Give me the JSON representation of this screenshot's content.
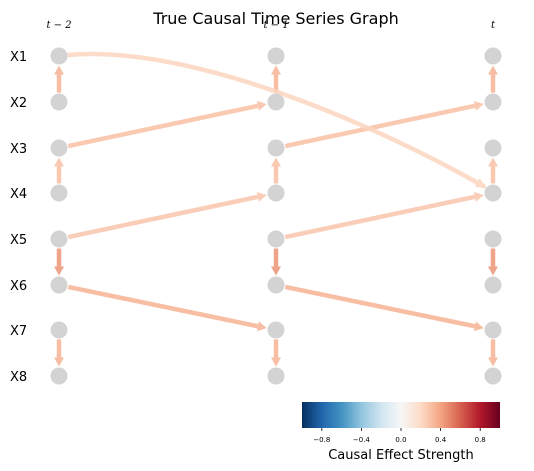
{
  "title": "True Causal Time Series Graph",
  "time_labels": [
    "t − 2",
    "t − 1",
    "t"
  ],
  "variables": [
    "X1",
    "X2",
    "X3",
    "X4",
    "X5",
    "X6",
    "X7",
    "X8"
  ],
  "edges": [
    {
      "from": [
        "t − 2",
        "X2"
      ],
      "to": [
        "t − 2",
        "X1"
      ],
      "strength": 0.35
    },
    {
      "from": [
        "t − 1",
        "X2"
      ],
      "to": [
        "t − 1",
        "X1"
      ],
      "strength": 0.35
    },
    {
      "from": [
        "t",
        "X2"
      ],
      "to": [
        "t",
        "X1"
      ],
      "strength": 0.35
    },
    {
      "from": [
        "t − 2",
        "X4"
      ],
      "to": [
        "t − 2",
        "X3"
      ],
      "strength": 0.3
    },
    {
      "from": [
        "t − 1",
        "X4"
      ],
      "to": [
        "t − 1",
        "X3"
      ],
      "strength": 0.3
    },
    {
      "from": [
        "t",
        "X4"
      ],
      "to": [
        "t",
        "X3"
      ],
      "strength": 0.3
    },
    {
      "from": [
        "t − 2",
        "X5"
      ],
      "to": [
        "t − 2",
        "X6"
      ],
      "strength": 0.45
    },
    {
      "from": [
        "t − 1",
        "X5"
      ],
      "to": [
        "t − 1",
        "X6"
      ],
      "strength": 0.45
    },
    {
      "from": [
        "t",
        "X5"
      ],
      "to": [
        "t",
        "X6"
      ],
      "strength": 0.45
    },
    {
      "from": [
        "t − 2",
        "X7"
      ],
      "to": [
        "t − 2",
        "X8"
      ],
      "strength": 0.35
    },
    {
      "from": [
        "t − 1",
        "X7"
      ],
      "to": [
        "t − 1",
        "X8"
      ],
      "strength": 0.35
    },
    {
      "from": [
        "t",
        "X7"
      ],
      "to": [
        "t",
        "X8"
      ],
      "strength": 0.35
    },
    {
      "from": [
        "t − 2",
        "X3"
      ],
      "to": [
        "t − 1",
        "X2"
      ],
      "strength": 0.3
    },
    {
      "from": [
        "t − 1",
        "X3"
      ],
      "to": [
        "t",
        "X2"
      ],
      "strength": 0.3
    },
    {
      "from": [
        "t − 2",
        "X5"
      ],
      "to": [
        "t − 1",
        "X4"
      ],
      "strength": 0.28
    },
    {
      "from": [
        "t − 1",
        "X5"
      ],
      "to": [
        "t",
        "X4"
      ],
      "strength": 0.28
    },
    {
      "from": [
        "t − 2",
        "X6"
      ],
      "to": [
        "t − 1",
        "X7"
      ],
      "strength": 0.35
    },
    {
      "from": [
        "t − 1",
        "X6"
      ],
      "to": [
        "t",
        "X7"
      ],
      "strength": 0.35
    },
    {
      "from": [
        "t − 2",
        "X1"
      ],
      "to": [
        "t",
        "X4"
      ],
      "strength": 0.22
    }
  ],
  "colorbar": {
    "label": "Causal Effect Strength",
    "ticks": [
      "−0.8",
      "−0.4",
      "0.0",
      "0.4",
      "0.8"
    ],
    "tick_values": [
      -0.8,
      -0.4,
      0.0,
      0.4,
      0.8
    ],
    "range": [
      -1,
      1
    ]
  },
  "colors": {
    "node": "#d3d3d3",
    "colormap": "RdBu_r"
  }
}
